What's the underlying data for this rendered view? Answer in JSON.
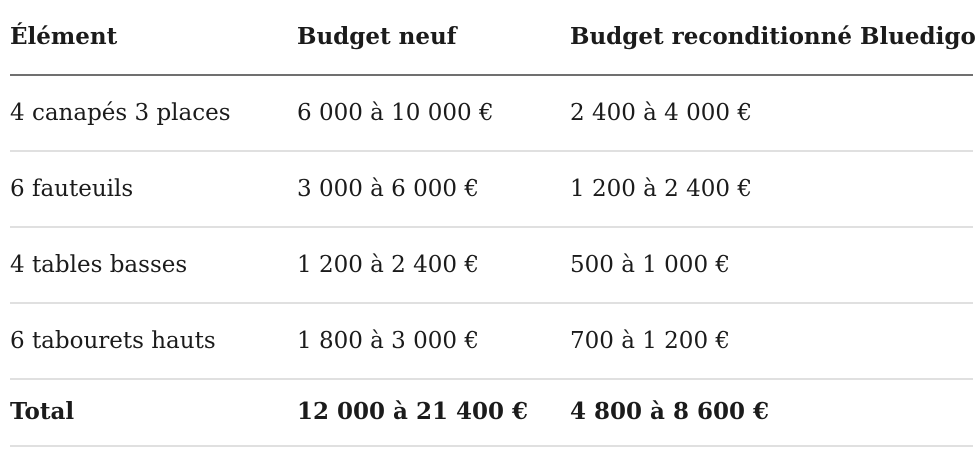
{
  "table": {
    "headers": {
      "item": "Élément",
      "new": "Budget neuf",
      "refurb": "Budget reconditionné Bluedigo"
    },
    "rows": [
      {
        "item": "4 canapés 3 places",
        "new": "6 000 à 10 000 €",
        "refurb": "2 400 à 4 000 €"
      },
      {
        "item": "6 fauteuils",
        "new": "3 000 à 6 000 €",
        "refurb": "1 200 à 2 400 €"
      },
      {
        "item": "4 tables basses",
        "new": "1 200 à 2 400 €",
        "refurb": "500 à 1 000 €"
      },
      {
        "item": "6 tabourets hauts",
        "new": "1 800 à 3 000 €",
        "refurb": "700 à 1 200 €"
      }
    ],
    "total": {
      "item": "Total",
      "new": "12 000 à 21 400 €",
      "refurb": "4 800 à 8 600 €"
    }
  },
  "colors": {
    "text": "#1b1b1b",
    "header_rule": "#707070",
    "row_rule": "#e0e0e0",
    "background": "#ffffff"
  }
}
